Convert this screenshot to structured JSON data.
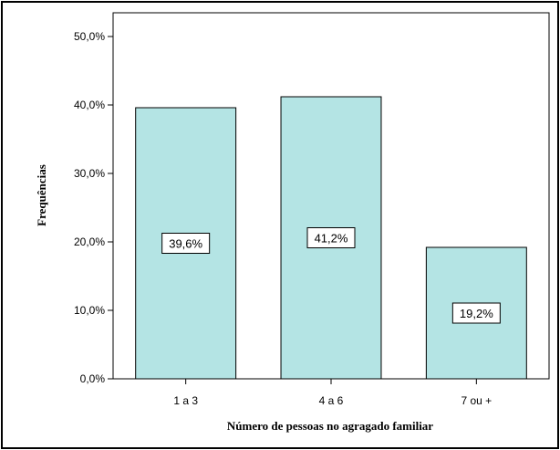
{
  "chart_data": {
    "type": "bar",
    "categories": [
      "1 a 3",
      "4 a 6",
      "7 ou +"
    ],
    "values": [
      39.6,
      41.2,
      19.2
    ],
    "data_labels": [
      "39,6%",
      "41,2%",
      "19,2%"
    ],
    "xlabel": "Número de pessoas no agragado familiar",
    "ylabel": "Frequências",
    "ylim": [
      0,
      50
    ],
    "yticks": [
      {
        "value": 0,
        "label": "0,0%"
      },
      {
        "value": 10,
        "label": "10,0%"
      },
      {
        "value": 20,
        "label": "20,0%"
      },
      {
        "value": 30,
        "label": "30,0%"
      },
      {
        "value": 40,
        "label": "40,0%"
      },
      {
        "value": 50,
        "label": "50,0%"
      }
    ],
    "grid": false,
    "bar_color": "#b4e4e4"
  }
}
